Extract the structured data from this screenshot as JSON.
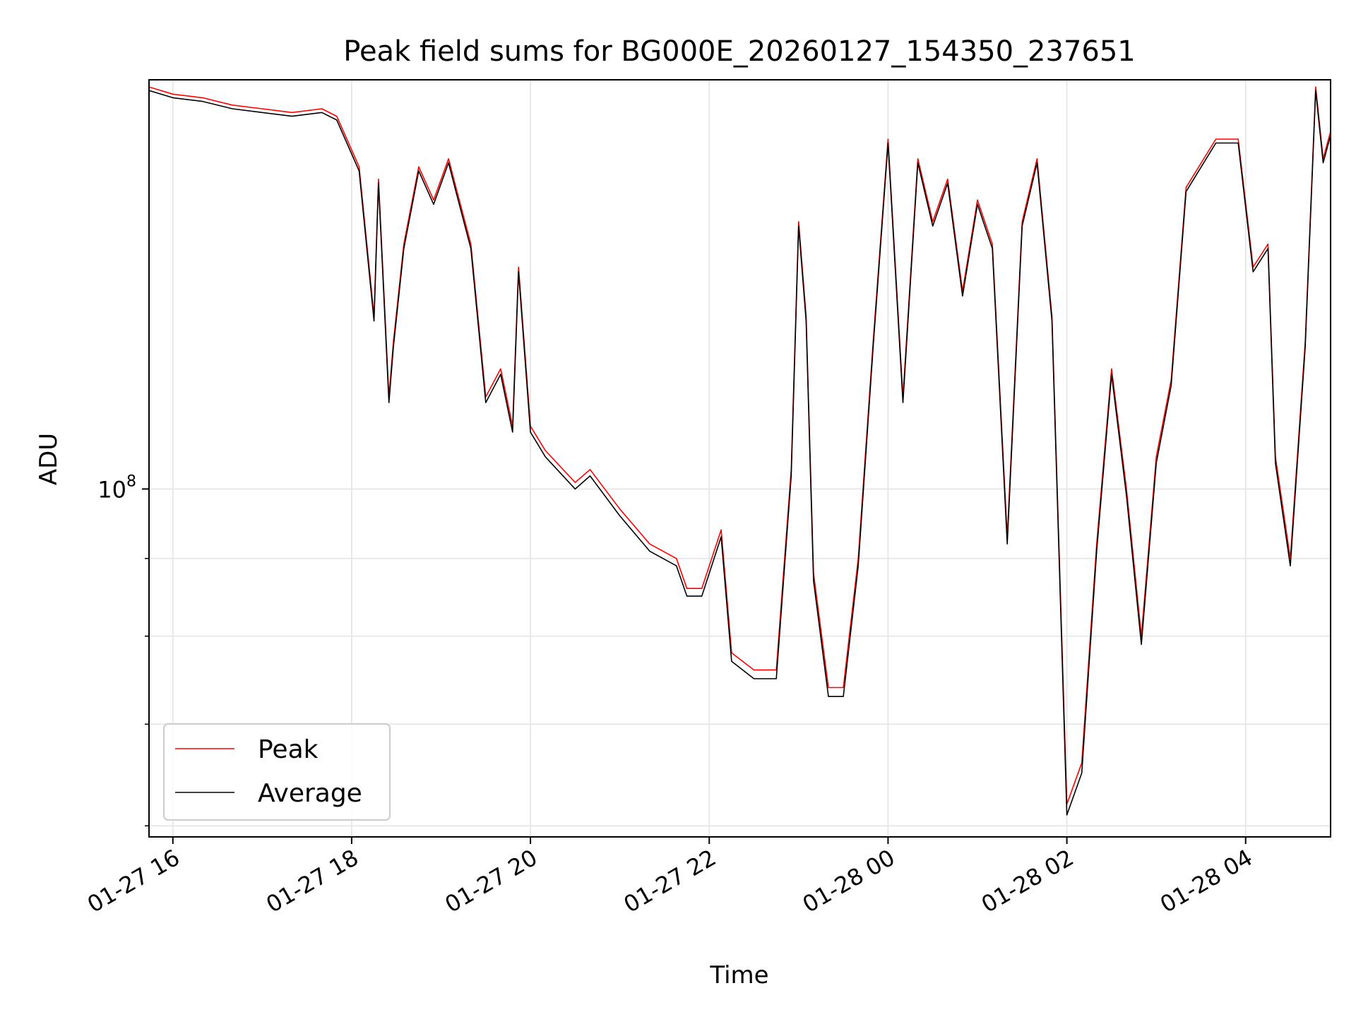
{
  "chart_data": {
    "type": "line",
    "title": "Peak field sums for BG000E_20260127_154350_237651",
    "xlabel": "Time",
    "ylabel": "ADU",
    "y_scale": "log",
    "ylim": [
      59000000,
      186000000
    ],
    "xlim": [
      "2026-01-27 15:44",
      "2026-01-28 04:57"
    ],
    "grid": true,
    "legend_position": "lower-left",
    "x_ticks": [
      {
        "t": "2026-01-27 16:00",
        "label": "01-27 16"
      },
      {
        "t": "2026-01-27 18:00",
        "label": "01-27 18"
      },
      {
        "t": "2026-01-27 20:00",
        "label": "01-27 20"
      },
      {
        "t": "2026-01-27 22:00",
        "label": "01-27 22"
      },
      {
        "t": "2026-01-28 00:00",
        "label": "01-28 00"
      },
      {
        "t": "2026-01-28 02:00",
        "label": "01-28 02"
      },
      {
        "t": "2026-01-28 04:00",
        "label": "01-28 04"
      }
    ],
    "y_major_ticks": [
      {
        "value": 100000000,
        "label_base": "10",
        "label_exp": "8"
      }
    ],
    "y_minor_ticks": [
      60000000,
      70000000,
      80000000,
      90000000
    ],
    "series": [
      {
        "name": "Peak",
        "color": "#ff0000",
        "points": [
          [
            "2026-01-27 15:44",
            184000000
          ],
          [
            "2026-01-27 16:00",
            182000000
          ],
          [
            "2026-01-27 16:20",
            181000000
          ],
          [
            "2026-01-27 16:40",
            179000000
          ],
          [
            "2026-01-27 17:00",
            178000000
          ],
          [
            "2026-01-27 17:20",
            177000000
          ],
          [
            "2026-01-27 17:40",
            178000000
          ],
          [
            "2026-01-27 17:50",
            176000000
          ],
          [
            "2026-01-27 18:05",
            163000000
          ],
          [
            "2026-01-27 18:15",
            130000000
          ],
          [
            "2026-01-27 18:18",
            160000000
          ],
          [
            "2026-01-27 18:25",
            115000000
          ],
          [
            "2026-01-27 18:28",
            125000000
          ],
          [
            "2026-01-27 18:35",
            145000000
          ],
          [
            "2026-01-27 18:45",
            163000000
          ],
          [
            "2026-01-27 18:55",
            155000000
          ],
          [
            "2026-01-27 19:05",
            165000000
          ],
          [
            "2026-01-27 19:10",
            158000000
          ],
          [
            "2026-01-27 19:20",
            145000000
          ],
          [
            "2026-01-27 19:30",
            115000000
          ],
          [
            "2026-01-27 19:40",
            120000000
          ],
          [
            "2026-01-27 19:48",
            110000000
          ],
          [
            "2026-01-27 19:52",
            140000000
          ],
          [
            "2026-01-27 20:00",
            110000000
          ],
          [
            "2026-01-27 20:10",
            106000000
          ],
          [
            "2026-01-27 20:30",
            101000000
          ],
          [
            "2026-01-27 20:40",
            103000000
          ],
          [
            "2026-01-27 21:00",
            97000000
          ],
          [
            "2026-01-27 21:20",
            92000000
          ],
          [
            "2026-01-27 21:38",
            90000000
          ],
          [
            "2026-01-27 21:45",
            86000000
          ],
          [
            "2026-01-27 21:55",
            86000000
          ],
          [
            "2026-01-27 22:08",
            94000000
          ],
          [
            "2026-01-27 22:15",
            78000000
          ],
          [
            "2026-01-27 22:30",
            76000000
          ],
          [
            "2026-01-27 22:45",
            76000000
          ],
          [
            "2026-01-27 22:55",
            103000000
          ],
          [
            "2026-01-27 23:00",
            150000000
          ],
          [
            "2026-01-27 23:05",
            130000000
          ],
          [
            "2026-01-27 23:10",
            88000000
          ],
          [
            "2026-01-27 23:20",
            74000000
          ],
          [
            "2026-01-27 23:30",
            74000000
          ],
          [
            "2026-01-27 23:40",
            90000000
          ],
          [
            "2026-01-27 23:50",
            125000000
          ],
          [
            "2026-01-28 00:00",
            170000000
          ],
          [
            "2026-01-28 00:10",
            115000000
          ],
          [
            "2026-01-28 00:20",
            165000000
          ],
          [
            "2026-01-28 00:30",
            150000000
          ],
          [
            "2026-01-28 00:40",
            160000000
          ],
          [
            "2026-01-28 00:50",
            135000000
          ],
          [
            "2026-01-28 01:00",
            155000000
          ],
          [
            "2026-01-28 01:10",
            145000000
          ],
          [
            "2026-01-28 01:20",
            93000000
          ],
          [
            "2026-01-28 01:30",
            150000000
          ],
          [
            "2026-01-28 01:40",
            165000000
          ],
          [
            "2026-01-28 01:50",
            130000000
          ],
          [
            "2026-01-28 02:00",
            62000000
          ],
          [
            "2026-01-28 02:10",
            66000000
          ],
          [
            "2026-01-28 02:20",
            92000000
          ],
          [
            "2026-01-28 02:30",
            120000000
          ],
          [
            "2026-01-28 02:40",
            100000000
          ],
          [
            "2026-01-28 02:50",
            80000000
          ],
          [
            "2026-01-28 03:00",
            105000000
          ],
          [
            "2026-01-28 03:10",
            118000000
          ],
          [
            "2026-01-28 03:20",
            158000000
          ],
          [
            "2026-01-28 03:40",
            170000000
          ],
          [
            "2026-01-28 03:55",
            170000000
          ],
          [
            "2026-01-28 04:05",
            140000000
          ],
          [
            "2026-01-28 04:15",
            145000000
          ],
          [
            "2026-01-28 04:20",
            105000000
          ],
          [
            "2026-01-28 04:30",
            90000000
          ],
          [
            "2026-01-28 04:40",
            125000000
          ],
          [
            "2026-01-28 04:47",
            184000000
          ],
          [
            "2026-01-28 04:52",
            165000000
          ],
          [
            "2026-01-28 04:57",
            172000000
          ]
        ]
      },
      {
        "name": "Average",
        "color": "#000000",
        "points": [
          [
            "2026-01-27 15:44",
            183000000
          ],
          [
            "2026-01-27 16:00",
            181000000
          ],
          [
            "2026-01-27 16:20",
            180000000
          ],
          [
            "2026-01-27 16:40",
            178000000
          ],
          [
            "2026-01-27 17:00",
            177000000
          ],
          [
            "2026-01-27 17:20",
            176000000
          ],
          [
            "2026-01-27 17:40",
            177000000
          ],
          [
            "2026-01-27 17:50",
            175000000
          ],
          [
            "2026-01-27 18:05",
            162000000
          ],
          [
            "2026-01-27 18:15",
            129000000
          ],
          [
            "2026-01-27 18:18",
            159000000
          ],
          [
            "2026-01-27 18:25",
            114000000
          ],
          [
            "2026-01-27 18:28",
            124000000
          ],
          [
            "2026-01-27 18:35",
            144000000
          ],
          [
            "2026-01-27 18:45",
            162000000
          ],
          [
            "2026-01-27 18:55",
            154000000
          ],
          [
            "2026-01-27 19:05",
            164000000
          ],
          [
            "2026-01-27 19:10",
            157000000
          ],
          [
            "2026-01-27 19:20",
            144000000
          ],
          [
            "2026-01-27 19:30",
            114000000
          ],
          [
            "2026-01-27 19:40",
            119000000
          ],
          [
            "2026-01-27 19:48",
            109000000
          ],
          [
            "2026-01-27 19:52",
            139000000
          ],
          [
            "2026-01-27 20:00",
            109000000
          ],
          [
            "2026-01-27 20:10",
            105000000
          ],
          [
            "2026-01-27 20:30",
            100000000
          ],
          [
            "2026-01-27 20:40",
            102000000
          ],
          [
            "2026-01-27 21:00",
            96000000
          ],
          [
            "2026-01-27 21:20",
            91000000
          ],
          [
            "2026-01-27 21:38",
            89000000
          ],
          [
            "2026-01-27 21:45",
            85000000
          ],
          [
            "2026-01-27 21:55",
            85000000
          ],
          [
            "2026-01-27 22:08",
            93000000
          ],
          [
            "2026-01-27 22:15",
            77000000
          ],
          [
            "2026-01-27 22:30",
            75000000
          ],
          [
            "2026-01-27 22:45",
            75000000
          ],
          [
            "2026-01-27 22:55",
            102000000
          ],
          [
            "2026-01-27 23:00",
            149000000
          ],
          [
            "2026-01-27 23:05",
            129000000
          ],
          [
            "2026-01-27 23:10",
            87000000
          ],
          [
            "2026-01-27 23:20",
            73000000
          ],
          [
            "2026-01-27 23:30",
            73000000
          ],
          [
            "2026-01-27 23:40",
            89000000
          ],
          [
            "2026-01-27 23:50",
            124000000
          ],
          [
            "2026-01-28 00:00",
            169000000
          ],
          [
            "2026-01-28 00:10",
            114000000
          ],
          [
            "2026-01-28 00:20",
            164000000
          ],
          [
            "2026-01-28 00:30",
            149000000
          ],
          [
            "2026-01-28 00:40",
            159000000
          ],
          [
            "2026-01-28 00:50",
            134000000
          ],
          [
            "2026-01-28 01:00",
            154000000
          ],
          [
            "2026-01-28 01:10",
            144000000
          ],
          [
            "2026-01-28 01:20",
            92000000
          ],
          [
            "2026-01-28 01:30",
            149000000
          ],
          [
            "2026-01-28 01:40",
            164000000
          ],
          [
            "2026-01-28 01:50",
            129000000
          ],
          [
            "2026-01-28 02:00",
            61000000
          ],
          [
            "2026-01-28 02:10",
            65000000
          ],
          [
            "2026-01-28 02:20",
            91000000
          ],
          [
            "2026-01-28 02:30",
            119000000
          ],
          [
            "2026-01-28 02:40",
            99000000
          ],
          [
            "2026-01-28 02:50",
            79000000
          ],
          [
            "2026-01-28 03:00",
            104000000
          ],
          [
            "2026-01-28 03:10",
            117000000
          ],
          [
            "2026-01-28 03:20",
            157000000
          ],
          [
            "2026-01-28 03:40",
            169000000
          ],
          [
            "2026-01-28 03:55",
            169000000
          ],
          [
            "2026-01-28 04:05",
            139000000
          ],
          [
            "2026-01-28 04:15",
            144000000
          ],
          [
            "2026-01-28 04:20",
            104000000
          ],
          [
            "2026-01-28 04:30",
            89000000
          ],
          [
            "2026-01-28 04:40",
            124000000
          ],
          [
            "2026-01-28 04:47",
            183000000
          ],
          [
            "2026-01-28 04:52",
            164000000
          ],
          [
            "2026-01-28 04:57",
            171000000
          ]
        ]
      }
    ]
  }
}
